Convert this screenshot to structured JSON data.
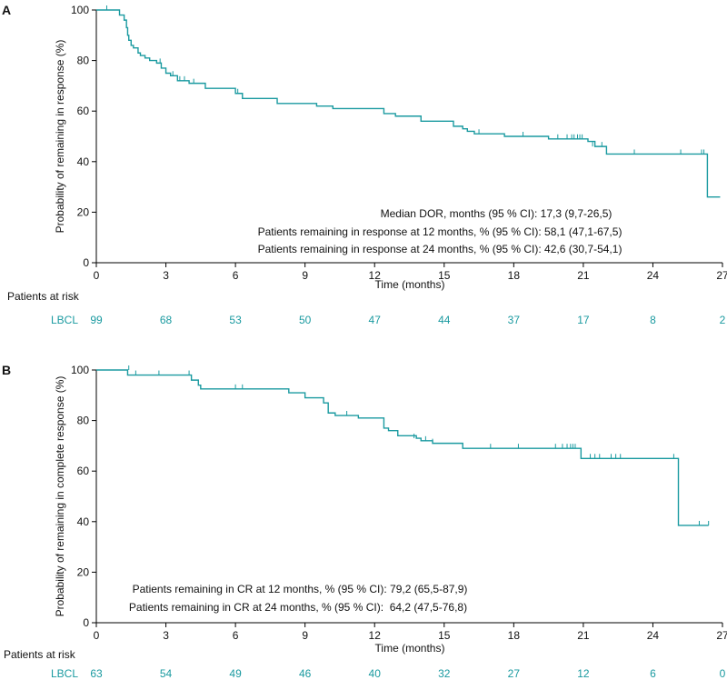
{
  "colors": {
    "series": "#1a9aa0",
    "axis": "#000000",
    "text": "#111111"
  },
  "chart_data": [
    {
      "panel": "A",
      "type": "line",
      "xlabel": "Time (months)",
      "ylabel": "Probability of remaining in response (%)",
      "xlim": [
        0,
        27
      ],
      "ylim": [
        0,
        100
      ],
      "xticks": [
        0,
        3,
        6,
        9,
        12,
        15,
        18,
        21,
        24,
        27
      ],
      "yticks": [
        0,
        20,
        40,
        60,
        80,
        100
      ],
      "grid": false,
      "series": [
        {
          "name": "LBCL",
          "step": [
            [
              0,
              100
            ],
            [
              0.7,
              100
            ],
            [
              1.0,
              98
            ],
            [
              1.2,
              96
            ],
            [
              1.3,
              93
            ],
            [
              1.35,
              90
            ],
            [
              1.4,
              88
            ],
            [
              1.5,
              86
            ],
            [
              1.6,
              85
            ],
            [
              1.8,
              83
            ],
            [
              1.9,
              82
            ],
            [
              2.1,
              81
            ],
            [
              2.3,
              80
            ],
            [
              2.6,
              79
            ],
            [
              2.8,
              77
            ],
            [
              3.0,
              75
            ],
            [
              3.2,
              74
            ],
            [
              3.5,
              72
            ],
            [
              4.0,
              71
            ],
            [
              4.7,
              69
            ],
            [
              6.0,
              67
            ],
            [
              6.3,
              65
            ],
            [
              7.8,
              63
            ],
            [
              9.5,
              62
            ],
            [
              10.2,
              61
            ],
            [
              12.4,
              59
            ],
            [
              12.9,
              58
            ],
            [
              14.0,
              56
            ],
            [
              15.4,
              54
            ],
            [
              15.8,
              53
            ],
            [
              16.0,
              52
            ],
            [
              16.3,
              51
            ],
            [
              17.6,
              50
            ],
            [
              19.5,
              49
            ],
            [
              21.2,
              48
            ],
            [
              21.5,
              46
            ],
            [
              22.0,
              43
            ],
            [
              26.3,
              43
            ],
            [
              26.35,
              26
            ],
            [
              26.9,
              26
            ]
          ],
          "censored": [
            [
              0.45,
              100
            ],
            [
              2.75,
              79
            ],
            [
              3.3,
              74
            ],
            [
              3.6,
              72
            ],
            [
              3.8,
              72
            ],
            [
              4.2,
              71
            ],
            [
              6.1,
              67
            ],
            [
              16.5,
              51
            ],
            [
              18.4,
              50
            ],
            [
              19.9,
              49
            ],
            [
              20.3,
              49
            ],
            [
              20.5,
              49
            ],
            [
              20.6,
              49
            ],
            [
              20.75,
              49
            ],
            [
              20.85,
              49
            ],
            [
              20.95,
              49
            ],
            [
              21.4,
              46
            ],
            [
              21.8,
              46
            ],
            [
              23.2,
              43
            ],
            [
              25.2,
              43
            ],
            [
              26.1,
              43
            ],
            [
              26.2,
              43
            ]
          ]
        }
      ],
      "annotations": [
        "Median DOR, months (95 % CI): 17,3 (9,7-26,5)",
        "Patients remaining in response at 12 months, % (95 % CI): 58,1 (47,1-67,5)",
        "Patients remaining in response at 24 months, % (95 % CI): 42,6 (30,7-54,1)"
      ],
      "risk_table": {
        "header": "Patients at risk",
        "label": "LBCL",
        "times": [
          0,
          3,
          6,
          9,
          12,
          15,
          18,
          21,
          24,
          27
        ],
        "values": [
          99,
          68,
          53,
          50,
          47,
          44,
          37,
          17,
          8,
          2
        ]
      }
    },
    {
      "panel": "B",
      "type": "line",
      "xlabel": "Time (months)",
      "ylabel": "Probability of remaining in complete response (%)",
      "xlim": [
        0,
        27
      ],
      "ylim": [
        0,
        100
      ],
      "xticks": [
        0,
        3,
        6,
        9,
        12,
        15,
        18,
        21,
        24,
        27
      ],
      "yticks": [
        0,
        20,
        40,
        60,
        80,
        100
      ],
      "grid": false,
      "series": [
        {
          "name": "LBCL",
          "step": [
            [
              0,
              100
            ],
            [
              1.3,
              100
            ],
            [
              1.35,
              98
            ],
            [
              4.0,
              98
            ],
            [
              4.1,
              96
            ],
            [
              4.4,
              94
            ],
            [
              4.5,
              92.5
            ],
            [
              8.0,
              92.5
            ],
            [
              8.3,
              91
            ],
            [
              9.0,
              89
            ],
            [
              9.8,
              87
            ],
            [
              10.0,
              83
            ],
            [
              10.3,
              82
            ],
            [
              11.3,
              81
            ],
            [
              12.4,
              77
            ],
            [
              12.6,
              76
            ],
            [
              13.0,
              74
            ],
            [
              13.8,
              73
            ],
            [
              14.0,
              72
            ],
            [
              14.5,
              71
            ],
            [
              15.8,
              69
            ],
            [
              20.8,
              69
            ],
            [
              20.9,
              65
            ],
            [
              24.9,
              65
            ],
            [
              25.1,
              38.5
            ],
            [
              26.4,
              38.5
            ]
          ],
          "censored": [
            [
              1.4,
              100
            ],
            [
              1.7,
              98
            ],
            [
              2.7,
              98
            ],
            [
              4.0,
              98
            ],
            [
              6.0,
              92.5
            ],
            [
              6.3,
              92.5
            ],
            [
              10.8,
              82
            ],
            [
              13.7,
              73
            ],
            [
              14.2,
              72
            ],
            [
              14.5,
              71
            ],
            [
              17.0,
              69
            ],
            [
              18.2,
              69
            ],
            [
              19.8,
              69
            ],
            [
              20.1,
              69
            ],
            [
              20.3,
              69
            ],
            [
              20.45,
              69
            ],
            [
              20.55,
              69
            ],
            [
              20.65,
              69
            ],
            [
              21.3,
              65
            ],
            [
              21.5,
              65
            ],
            [
              21.7,
              65
            ],
            [
              22.2,
              65
            ],
            [
              22.4,
              65
            ],
            [
              22.6,
              65
            ],
            [
              24.9,
              65
            ],
            [
              26.0,
              38.5
            ],
            [
              26.4,
              38.5
            ]
          ]
        }
      ],
      "annotations": [
        "Patients remaining in CR at 12 months, % (95 % CI): 79,2 (65,5-87,9)",
        "Patients remaining in CR at 24 months, % (95 % CI):  64,2 (47,5-76,8)"
      ],
      "risk_table": {
        "header": "Patients at risk",
        "label": "LBCL",
        "times": [
          0,
          3,
          6,
          9,
          12,
          15,
          18,
          21,
          24,
          27
        ],
        "values": [
          63,
          54,
          49,
          46,
          40,
          32,
          27,
          12,
          6,
          0
        ]
      }
    }
  ]
}
